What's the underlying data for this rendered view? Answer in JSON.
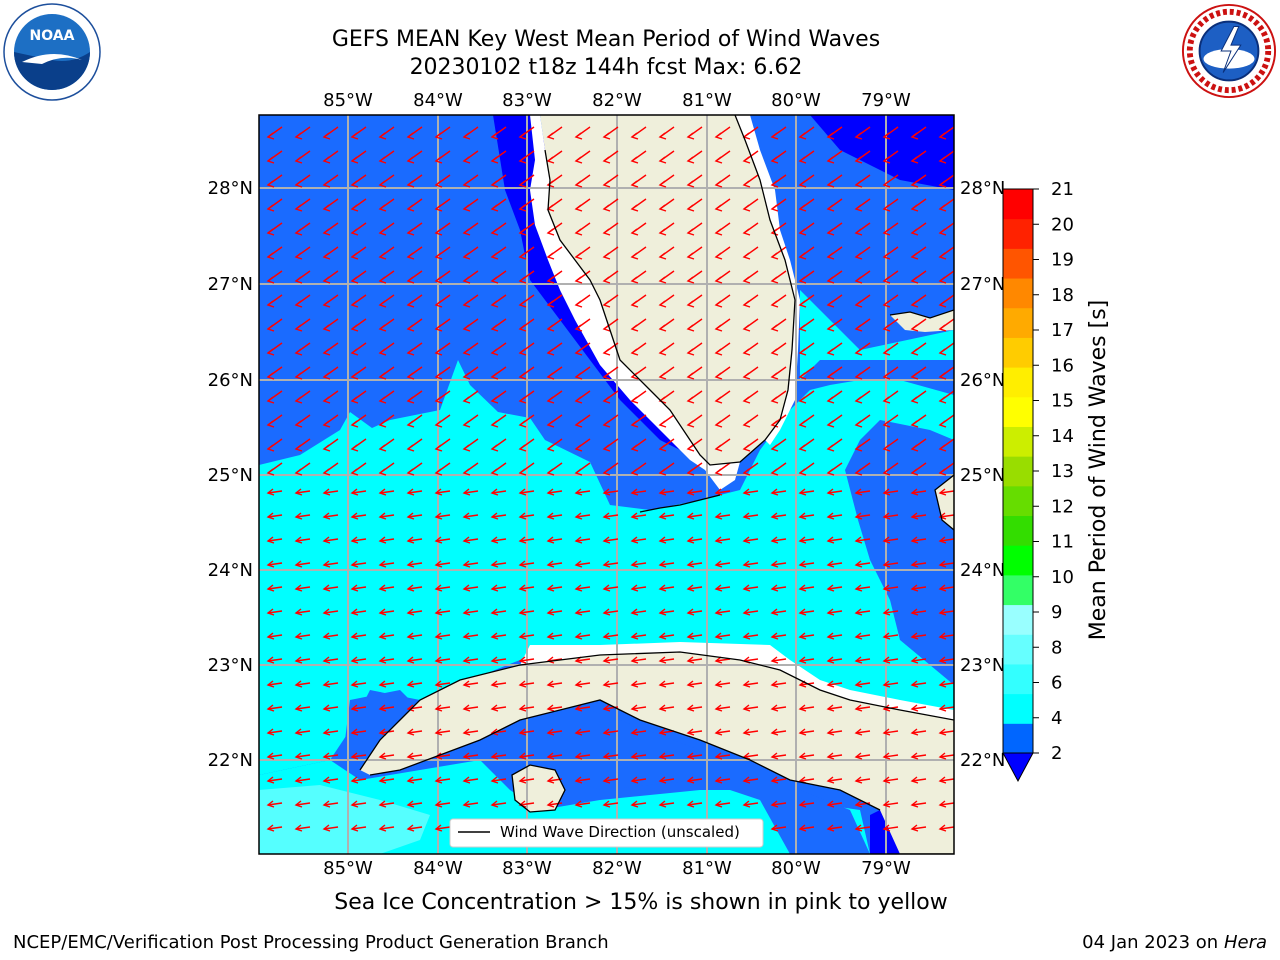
{
  "header": {
    "title_line1": "GEFS MEAN Key West Mean Period of Wind Waves",
    "title_line2": "20230102 t18z 144h fcst   Max: 6.62"
  },
  "logos": {
    "left": "noaa-logo",
    "left_text": "NOAA",
    "left_ring_text": "NATIONAL OCEANIC AND ATMOSPHERIC ADMINISTRATION · U.S. DEPARTMENT OF COMMERCE",
    "right": "nws-logo",
    "right_ring_text": "NATIONAL WEATHER SERVICE"
  },
  "map": {
    "lon_labels": [
      "85°W",
      "84°W",
      "83°W",
      "82°W",
      "81°W",
      "80°W",
      "79°W"
    ],
    "lat_labels": [
      "28°N",
      "27°N",
      "26°N",
      "25°N",
      "24°N",
      "23°N",
      "22°N"
    ],
    "legend_label": "Wind Wave Direction (unscaled)",
    "vector_color": "#ff0000"
  },
  "colorbar": {
    "label": "Mean Period of Wind Waves [s]",
    "ticks": [
      "2",
      "4",
      "6",
      "8",
      "9",
      "10",
      "11",
      "12",
      "13",
      "14",
      "15",
      "16",
      "17",
      "18",
      "19",
      "20",
      "21"
    ],
    "colors": [
      "#0066ff",
      "#00ffff",
      "#33ffff",
      "#66ffff",
      "#99ffff",
      "#33ff66",
      "#00ff00",
      "#33dd00",
      "#66dd00",
      "#99dd00",
      "#ccee00",
      "#ffff00",
      "#ffee00",
      "#ffcc00",
      "#ffaa00",
      "#ff8800",
      "#ff5500",
      "#ff2200",
      "#ff0000"
    ],
    "extend_color": "#0000ff"
  },
  "field_colors": {
    "ocean_2_4": "#1a6bff",
    "ocean_4_6": "#00ffff",
    "ocean_lt_2": "#0000ff",
    "ocean_6_8": "#55ffff",
    "land": "#efefdb"
  },
  "footer": {
    "note": "Sea Ice Concentration > 15% is shown in pink to yellow",
    "credit_left": "NCEP/EMC/Verification Post Processing Product Generation Branch",
    "credit_date": "04 Jan 2023 on ",
    "credit_host": "Hera"
  }
}
